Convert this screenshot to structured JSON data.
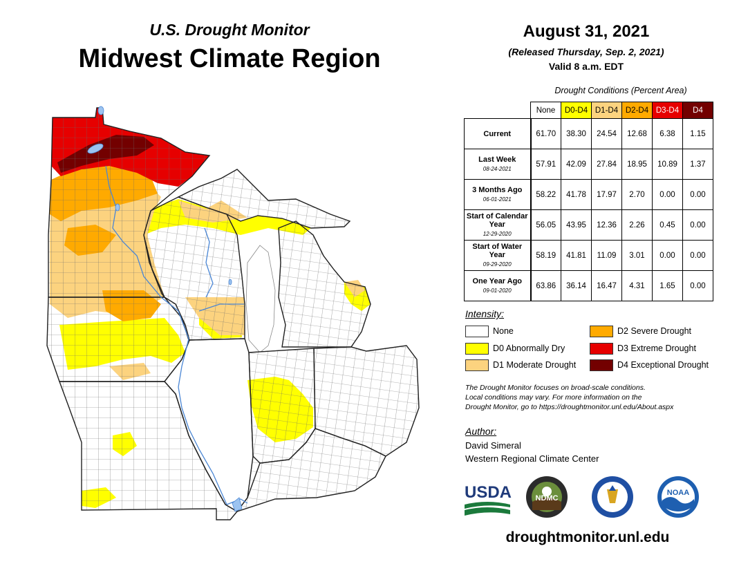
{
  "header": {
    "subtitle": "U.S. Drought Monitor",
    "title": "Midwest Climate Region",
    "date": "August 31, 2021",
    "released": "(Released Thursday, Sep. 2, 2021)",
    "valid": "Valid 8 a.m. EDT"
  },
  "table": {
    "caption": "Drought Conditions (Percent Area)",
    "columns": [
      "None",
      "D0-D4",
      "D1-D4",
      "D2-D4",
      "D3-D4",
      "D4"
    ],
    "rows": [
      {
        "label": "Current",
        "date": "",
        "values": [
          "61.70",
          "38.30",
          "24.54",
          "12.68",
          "6.38",
          "1.15"
        ]
      },
      {
        "label": "Last Week",
        "date": "08-24-2021",
        "values": [
          "57.91",
          "42.09",
          "27.84",
          "18.95",
          "10.89",
          "1.37"
        ]
      },
      {
        "label": "3 Months Ago",
        "date": "06-01-2021",
        "values": [
          "58.22",
          "41.78",
          "17.97",
          "2.70",
          "0.00",
          "0.00"
        ]
      },
      {
        "label": "Start of Calendar Year",
        "date": "12-29-2020",
        "values": [
          "56.05",
          "43.95",
          "12.36",
          "2.26",
          "0.45",
          "0.00"
        ]
      },
      {
        "label": "Start of Water Year",
        "date": "09-29-2020",
        "values": [
          "58.19",
          "41.81",
          "11.09",
          "3.01",
          "0.00",
          "0.00"
        ]
      },
      {
        "label": "One Year Ago",
        "date": "09-01-2020",
        "values": [
          "63.86",
          "36.14",
          "16.47",
          "4.31",
          "1.65",
          "0.00"
        ]
      }
    ]
  },
  "legend": {
    "title": "Intensity:",
    "items": [
      {
        "label": "None",
        "color": "#ffffff"
      },
      {
        "label": "D0 Abnormally Dry",
        "color": "#ffff00"
      },
      {
        "label": "D1 Moderate Drought",
        "color": "#fcd37f"
      },
      {
        "label": "D2 Severe Drought",
        "color": "#ffaa00"
      },
      {
        "label": "D3 Extreme Drought",
        "color": "#e60000"
      },
      {
        "label": "D4 Exceptional Drought",
        "color": "#730000"
      }
    ]
  },
  "note": {
    "line1": "The Drought Monitor focuses on broad-scale conditions.",
    "line2": "Local conditions may vary. For more information on the",
    "line3": "Drought Monitor, go to https://droughtmonitor.unl.edu/About.aspx"
  },
  "author": {
    "title": "Author:",
    "name": "David Simeral",
    "org": "Western Regional Climate Center"
  },
  "logos": {
    "usda": "USDA",
    "ndmc": "NDMC",
    "noaa": "NOAA"
  },
  "footer": {
    "url": "droughtmonitor.unl.edu"
  },
  "colors": {
    "none": "#ffffff",
    "d0": "#ffff00",
    "d1": "#fcd37f",
    "d2": "#ffaa00",
    "d3": "#e60000",
    "d4": "#730000",
    "water": "#9cc3f0",
    "river": "#4a86d4"
  }
}
